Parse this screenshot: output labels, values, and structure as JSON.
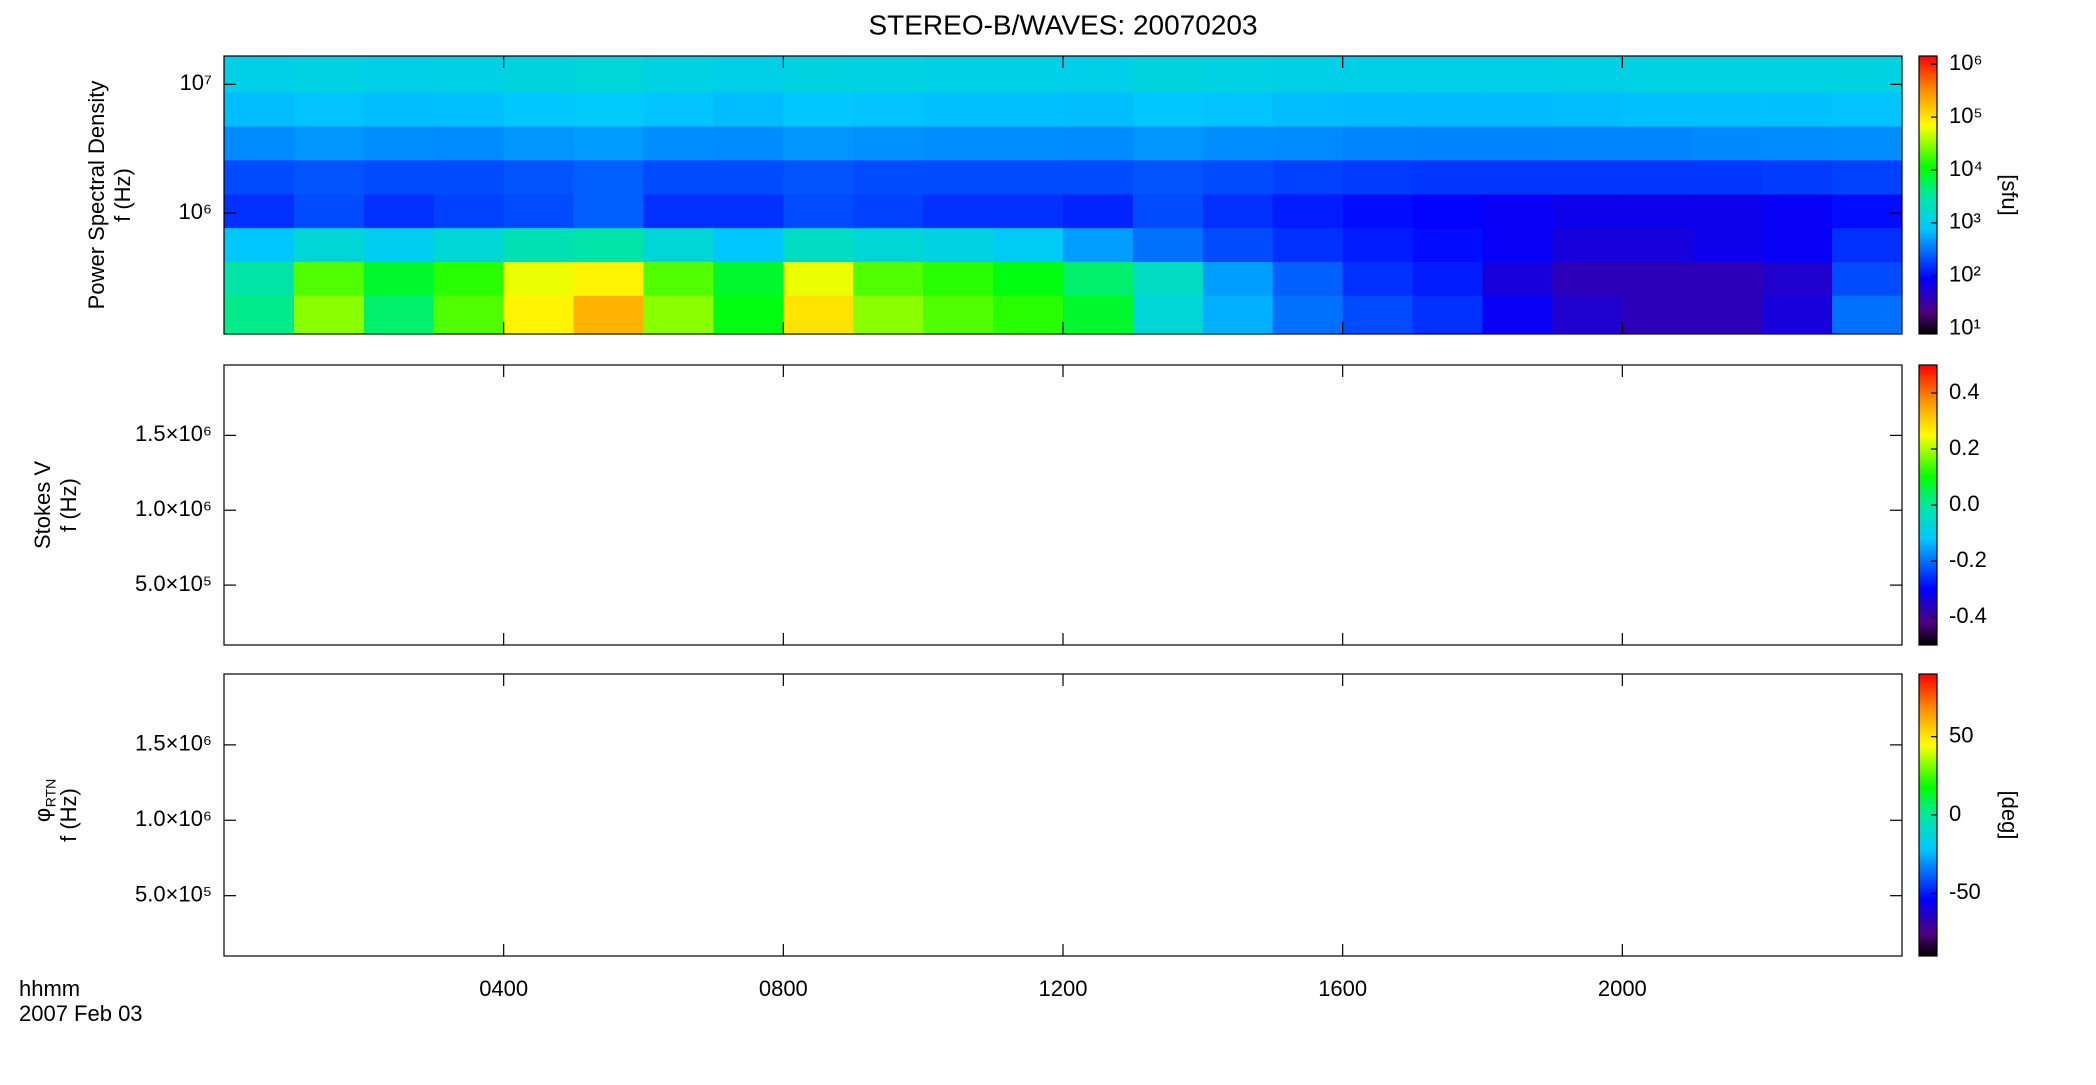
{
  "chart_data": [
    {
      "type": "heatmap",
      "title": "STEREO-B/WAVES: 20070203",
      "ylabel": [
        "Power Spectral Density",
        "f (Hz)"
      ],
      "ylog": true,
      "ylim": [
        115000,
        16600000
      ],
      "yticks": [
        {
          "value": 1000000,
          "label": "10⁶"
        },
        {
          "value": 10000000,
          "label": "10⁷"
        }
      ],
      "xbins": [
        0,
        1,
        2,
        3,
        4,
        5,
        6,
        7,
        8,
        9,
        10,
        11,
        12,
        13,
        14,
        15,
        16,
        17,
        18,
        19,
        20,
        21,
        22,
        23,
        24
      ],
      "ybins": [
        115000,
        230000,
        420000,
        770000,
        1410000,
        2590000,
        4750000,
        8700000,
        16600000
      ],
      "values": [
        [
          4000,
          30000,
          5000,
          20000,
          80000,
          200000,
          30000,
          10000,
          100000,
          30000,
          20000,
          15000,
          8000,
          1500,
          600,
          300,
          200,
          150,
          80,
          50,
          40,
          40,
          60,
          300
        ],
        [
          3000,
          20000,
          8000,
          15000,
          60000,
          80000,
          20000,
          8000,
          60000,
          20000,
          15000,
          10000,
          5000,
          2000,
          500,
          250,
          150,
          120,
          60,
          40,
          40,
          40,
          50,
          200
        ],
        [
          800,
          1500,
          1000,
          1500,
          2500,
          3000,
          1500,
          800,
          2000,
          1500,
          1200,
          900,
          500,
          300,
          200,
          150,
          120,
          100,
          80,
          60,
          60,
          70,
          80,
          150
        ],
        [
          150,
          200,
          150,
          180,
          200,
          250,
          150,
          150,
          200,
          180,
          150,
          150,
          130,
          200,
          150,
          120,
          100,
          90,
          80,
          70,
          70,
          70,
          80,
          100
        ],
        [
          200,
          220,
          200,
          200,
          220,
          250,
          200,
          200,
          220,
          200,
          200,
          200,
          200,
          220,
          200,
          180,
          170,
          160,
          160,
          160,
          160,
          160,
          170,
          180
        ],
        [
          400,
          450,
          420,
          400,
          450,
          480,
          420,
          400,
          450,
          430,
          420,
          420,
          400,
          450,
          420,
          400,
          380,
          370,
          370,
          380,
          380,
          390,
          400,
          420
        ],
        [
          700,
          750,
          700,
          720,
          800,
          850,
          750,
          700,
          780,
          750,
          720,
          720,
          700,
          800,
          750,
          700,
          680,
          680,
          680,
          700,
          720,
          720,
          730,
          750
        ],
        [
          1100,
          1200,
          1100,
          1150,
          1300,
          1400,
          1200,
          1100,
          1250,
          1200,
          1150,
          1150,
          1100,
          1300,
          1200,
          1150,
          1100,
          1100,
          1100,
          1150,
          1200,
          1200,
          1200,
          1250
        ]
      ],
      "zlog": true,
      "zlim": [
        7.9,
        1430000
      ],
      "zticks": [
        {
          "value": 10,
          "label": "10¹"
        },
        {
          "value": 100,
          "label": "10²"
        },
        {
          "value": 1000,
          "label": "10³"
        },
        {
          "value": 10000,
          "label": "10⁴"
        },
        {
          "value": 100000,
          "label": "10⁵"
        },
        {
          "value": 1000000,
          "label": "10⁶"
        }
      ],
      "zlabel": "[sfu]"
    },
    {
      "type": "heatmap",
      "ylabel": [
        "Stokes V",
        "f (Hz)"
      ],
      "ylog": false,
      "ylim": [
        100000,
        1970000
      ],
      "yticks": [
        {
          "value": 500000,
          "label": "5.0×10⁵"
        },
        {
          "value": 1000000,
          "label": "1.0×10⁶"
        },
        {
          "value": 1500000,
          "label": "1.5×10⁶"
        }
      ],
      "zlog": false,
      "zlim": [
        -0.5,
        0.5
      ],
      "zticks": [
        -0.4,
        -0.2,
        {
          "value": 0,
          "label": "0.0"
        },
        0.2,
        0.4
      ]
    },
    {
      "type": "heatmap",
      "ylabel": [
        "φ",
        "f (Hz)"
      ],
      "ylabel_sub": "RTN",
      "ylog": false,
      "ylim": [
        100000,
        1970000
      ],
      "yticks": [
        {
          "value": 500000,
          "label": "5.0×10⁵"
        },
        {
          "value": 1000000,
          "label": "1.0×10⁶"
        },
        {
          "value": 1500000,
          "label": "1.5×10⁶"
        }
      ],
      "zlog": false,
      "zlim": [
        -90,
        90
      ],
      "zticks": [
        -50,
        0,
        50
      ],
      "zlabel": "[deg]",
      "xlim": [
        0,
        24
      ],
      "xticks": [
        {
          "value": 4,
          "label": "0400"
        },
        {
          "value": 8,
          "label": "0800"
        },
        {
          "value": 12,
          "label": "1200"
        },
        {
          "value": 16,
          "label": "1600"
        },
        {
          "value": 20,
          "label": "2000"
        }
      ],
      "xlabel": [
        "hhmm",
        "2007 Feb 03"
      ]
    }
  ]
}
